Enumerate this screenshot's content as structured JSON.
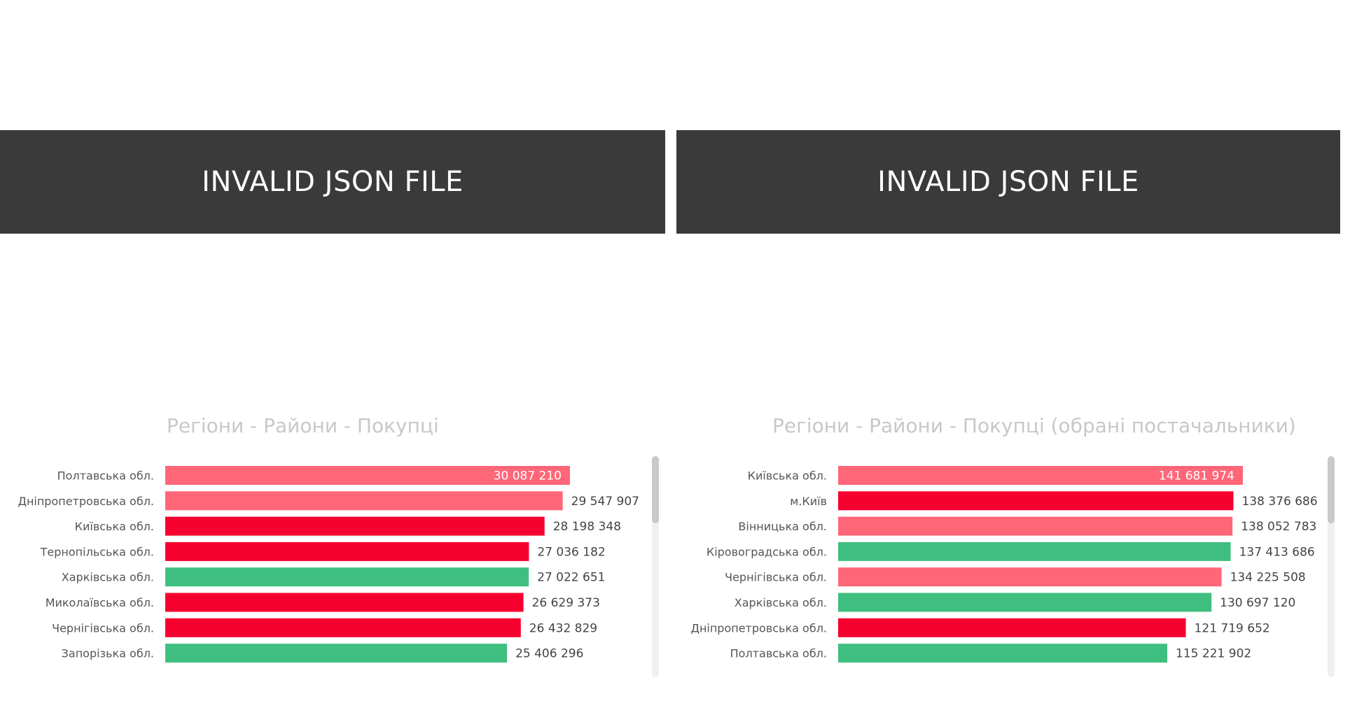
{
  "banners": {
    "left": "INVALID JSON FILE",
    "right": "INVALID JSON FILE"
  },
  "colors": {
    "red": "#f5002f",
    "pink": "#ff6678",
    "green": "#3fbf7f",
    "banner": "#3a3a3a",
    "title": "#c8c8c8"
  },
  "chart_data": [
    {
      "type": "bar",
      "orientation": "horizontal",
      "title": "Регіони - Райони - Покупці",
      "categories": [
        "Полтавська обл.",
        "Дніпропетровська обл.",
        "Київська обл.",
        "Тернопільська обл.",
        "Харківська обл.",
        "Миколаївська обл.",
        "Чернігівська обл.",
        "Запорізька обл."
      ],
      "values": [
        30087210,
        29547907,
        28198348,
        27036182,
        27022651,
        26629373,
        26432829,
        25406296
      ],
      "labels": [
        "30 087 210",
        "29 547 907",
        "28 198 348",
        "27 036 182",
        "27 022 651",
        "26 629 373",
        "26 432 829",
        "25 406 296"
      ],
      "bar_colors": [
        "pink",
        "pink",
        "red",
        "red",
        "green",
        "red",
        "red",
        "green"
      ],
      "xlim": [
        0,
        30087210
      ],
      "grid": false
    },
    {
      "type": "bar",
      "orientation": "horizontal",
      "title": "Регіони - Райони - Покупці (обрані постачальники)",
      "categories": [
        "Київська обл.",
        "м.Київ",
        "Вінницька обл.",
        "Кіровоградська обл.",
        "Чернігівська обл.",
        "Харківська обл.",
        "Дніпропетровська обл.",
        "Полтавська обл."
      ],
      "values": [
        141681974,
        138376686,
        138052783,
        137413686,
        134225508,
        130697120,
        121719652,
        115221902
      ],
      "labels": [
        "141 681 974",
        "138 376 686",
        "138 052 783",
        "137 413 686",
        "134 225 508",
        "130 697 120",
        "121 719 652",
        "115 221 902"
      ],
      "bar_colors": [
        "pink",
        "red",
        "pink",
        "green",
        "pink",
        "green",
        "red",
        "green"
      ],
      "xlim": [
        0,
        141681974
      ],
      "grid": false
    }
  ]
}
